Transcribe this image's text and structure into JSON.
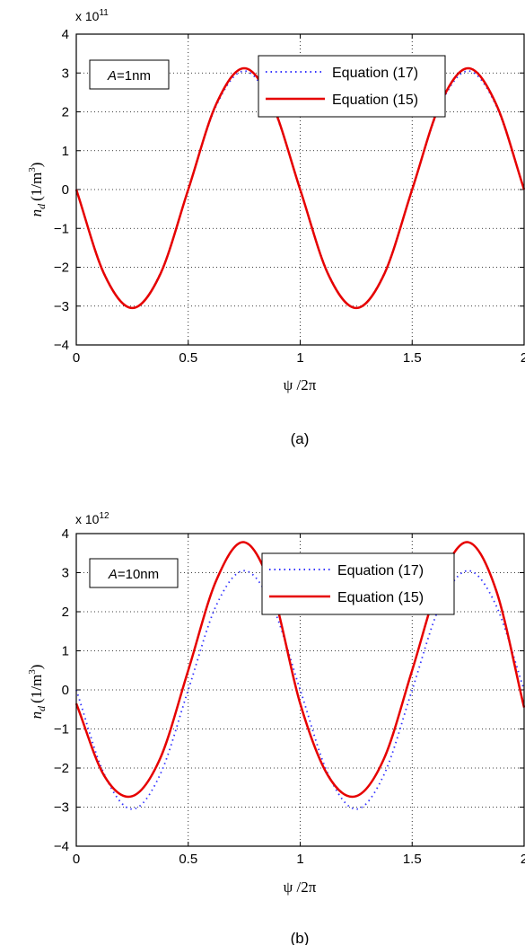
{
  "chart_data": [
    {
      "type": "line",
      "panel_label": "(a)",
      "annotation": "A=1nm",
      "annotation_var": "A",
      "annotation_rest": "=1nm",
      "multiplier": "x 10",
      "multiplier_exp": "11",
      "xlabel": "ψ /2π",
      "ylabel_base": "n",
      "ylabel_sub": "d",
      "ylabel_unit": "(1/m",
      "ylabel_unit_exp": "3",
      "ylabel_unit_close": ")",
      "xlim": [
        0,
        2
      ],
      "ylim": [
        -4,
        4
      ],
      "xticks": [
        0,
        0.5,
        1,
        1.5,
        2
      ],
      "xtick_labels": [
        "0",
        "0.5",
        "1",
        "1.5",
        "2"
      ],
      "yticks": [
        -4,
        -3,
        -2,
        -1,
        0,
        1,
        2,
        3,
        4
      ],
      "ytick_labels": [
        "−4",
        "−3",
        "−2",
        "−1",
        "0",
        "1",
        "2",
        "3",
        "4"
      ],
      "grid": true,
      "legend_position": "top-right",
      "series": [
        {
          "name": "Equation (17)",
          "style": "dotted",
          "color": "#3333ff",
          "x": [
            0,
            0.125,
            0.25,
            0.375,
            0.5,
            0.625,
            0.75,
            0.875,
            1,
            1.125,
            1.25,
            1.375,
            1.5,
            1.625,
            1.75,
            1.875,
            2
          ],
          "y": [
            0,
            -2.16,
            -3.05,
            -2.16,
            0,
            2.16,
            3.05,
            2.16,
            0,
            -2.16,
            -3.05,
            -2.16,
            0,
            2.16,
            3.05,
            2.16,
            0
          ]
        },
        {
          "name": "Equation (15)",
          "style": "solid",
          "color": "#e60000",
          "x": [
            0,
            0.125,
            0.25,
            0.375,
            0.5,
            0.625,
            0.75,
            0.875,
            1,
            1.125,
            1.25,
            1.375,
            1.5,
            1.625,
            1.75,
            1.875,
            2
          ],
          "y": [
            0,
            -2.18,
            -3.05,
            -2.18,
            0,
            2.2,
            3.12,
            2.2,
            0,
            -2.18,
            -3.05,
            -2.18,
            0,
            2.2,
            3.12,
            2.2,
            0
          ]
        }
      ]
    },
    {
      "type": "line",
      "panel_label": "(b)",
      "annotation": "A=10nm",
      "annotation_var": "A",
      "annotation_rest": "=10nm",
      "multiplier": "x 10",
      "multiplier_exp": "12",
      "xlabel": "ψ /2π",
      "ylabel_base": "n",
      "ylabel_sub": "d",
      "ylabel_unit": "(1/m",
      "ylabel_unit_exp": "3",
      "ylabel_unit_close": ")",
      "xlim": [
        0,
        2
      ],
      "ylim": [
        -4,
        4
      ],
      "xticks": [
        0,
        0.5,
        1,
        1.5,
        2
      ],
      "xtick_labels": [
        "0",
        "0.5",
        "1",
        "1.5",
        "2"
      ],
      "yticks": [
        -4,
        -3,
        -2,
        -1,
        0,
        1,
        2,
        3,
        4
      ],
      "ytick_labels": [
        "−4",
        "−3",
        "−2",
        "−1",
        "0",
        "1",
        "2",
        "3",
        "4"
      ],
      "grid": true,
      "legend_position": "top-right",
      "series": [
        {
          "name": "Equation (17)",
          "style": "dotted",
          "color": "#3333ff",
          "x": [
            0,
            0.125,
            0.25,
            0.375,
            0.5,
            0.625,
            0.75,
            0.875,
            1,
            1.125,
            1.25,
            1.375,
            1.5,
            1.625,
            1.75,
            1.875,
            2
          ],
          "y": [
            0,
            -2.16,
            -3.05,
            -2.16,
            0,
            2.16,
            3.05,
            2.16,
            0,
            -2.16,
            -3.05,
            -2.16,
            0,
            2.16,
            3.05,
            2.16,
            0
          ]
        },
        {
          "name": "Equation (15)",
          "style": "solid",
          "color": "#e60000",
          "x": [
            0,
            0.125,
            0.25,
            0.375,
            0.5,
            0.625,
            0.75,
            0.875,
            1,
            1.125,
            1.25,
            1.375,
            1.5,
            1.625,
            1.75,
            1.875,
            2
          ],
          "y": [
            -0.35,
            -2.2,
            -2.72,
            -1.75,
            0.5,
            2.8,
            3.78,
            2.55,
            -0.35,
            -2.2,
            -2.72,
            -1.75,
            0.5,
            2.8,
            3.78,
            2.55,
            -0.45
          ]
        }
      ]
    }
  ]
}
